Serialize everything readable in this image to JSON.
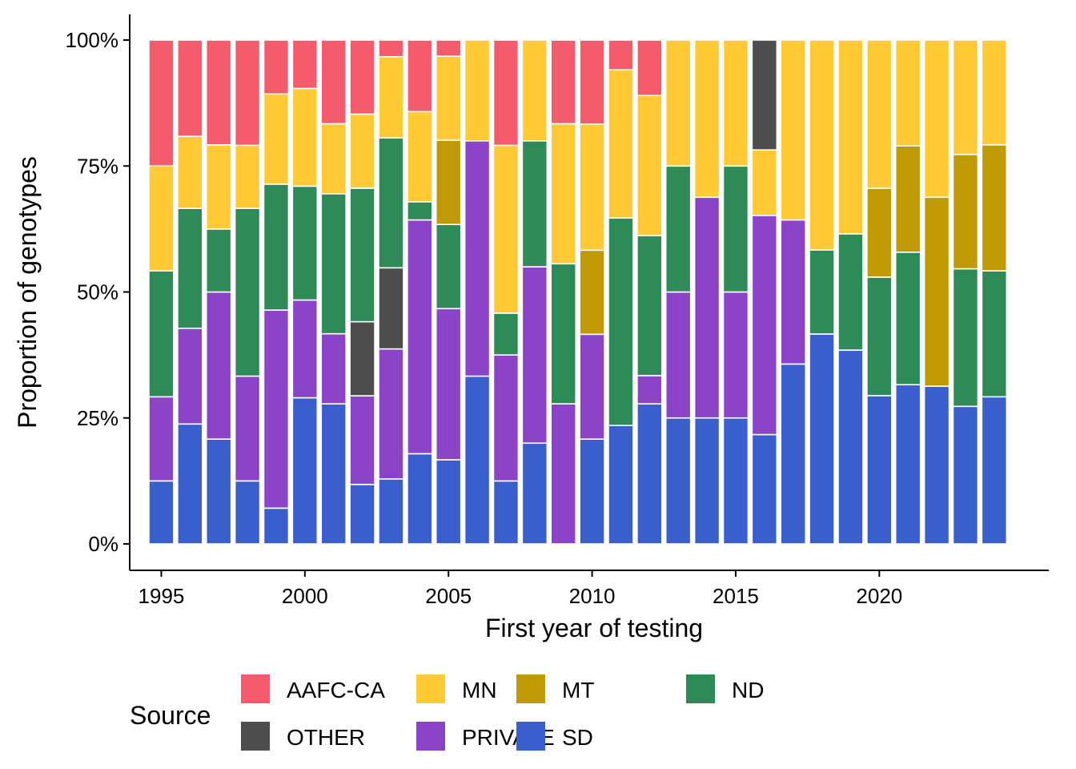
{
  "chart_data": {
    "type": "bar",
    "stacked": true,
    "normalized": true,
    "xlabel": "First year of testing",
    "ylabel": "Proportion of genotypes",
    "ylim": [
      0,
      1
    ],
    "y_ticks": [
      0,
      0.25,
      0.5,
      0.75,
      1.0
    ],
    "y_tick_labels": [
      "0%",
      "25%",
      "50%",
      "75%",
      "100%"
    ],
    "x_ticks": [
      1995,
      2000,
      2005,
      2010,
      2015,
      2020
    ],
    "x_tick_labels": [
      "1995",
      "2000",
      "2005",
      "2010",
      "2015",
      "2020"
    ],
    "xlim": [
      1993.9,
      2025.9
    ],
    "grid": false,
    "legend": {
      "title": "Source",
      "position": "bottom",
      "entries": [
        "AAFC-CA",
        "MN",
        "MT",
        "ND",
        "OTHER",
        "PRIVATE",
        "SD"
      ]
    },
    "colors": {
      "AAFC-CA": "#F45B6D",
      "MN": "#FFCA36",
      "MT": "#BF9A05",
      "ND": "#2E8B57",
      "OTHER": "#4D4D4D",
      "PRIVATE": "#8B44C8",
      "SD": "#3A5FCD"
    },
    "stack_order_bottom_to_top": [
      "SD",
      "PRIVATE",
      "OTHER",
      "ND",
      "MT",
      "MN",
      "AAFC-CA"
    ],
    "years": [
      1995,
      1996,
      1997,
      1998,
      1999,
      2000,
      2001,
      2002,
      2003,
      2004,
      2005,
      2006,
      2007,
      2008,
      2009,
      2010,
      2011,
      2012,
      2013,
      2014,
      2015,
      2016,
      2017,
      2018,
      2019,
      2020,
      2021,
      2022,
      2023,
      2024
    ],
    "series": [
      {
        "name": "SD",
        "values": [
          0.125,
          0.238,
          0.208,
          0.125,
          0.071,
          0.29,
          0.278,
          0.118,
          0.129,
          0.179,
          0.167,
          0.333,
          0.125,
          0.2,
          0.0,
          0.208,
          0.235,
          0.278,
          0.25,
          0.25,
          0.25,
          0.217,
          0.357,
          0.417,
          0.385,
          0.294,
          0.316,
          0.313,
          0.273,
          0.292
        ]
      },
      {
        "name": "PRIVATE",
        "values": [
          0.167,
          0.19,
          0.292,
          0.208,
          0.393,
          0.194,
          0.139,
          0.176,
          0.258,
          0.464,
          0.3,
          0.467,
          0.25,
          0.35,
          0.278,
          0.208,
          0.0,
          0.056,
          0.25,
          0.438,
          0.25,
          0.435,
          0.286,
          0.0,
          0.0,
          0.0,
          0.0,
          0.0,
          0.0,
          0.0
        ]
      },
      {
        "name": "OTHER",
        "values": [
          0,
          0,
          0,
          0,
          0,
          0,
          0,
          0.147,
          0.161,
          0,
          0,
          0,
          0,
          0,
          0,
          0,
          0,
          0,
          0,
          0,
          0,
          0,
          0,
          0,
          0,
          0,
          0,
          0,
          0,
          0
        ]
      },
      {
        "name": "ND",
        "values": [
          0.25,
          0.238,
          0.125,
          0.333,
          0.25,
          0.226,
          0.278,
          0.265,
          0.258,
          0.036,
          0.167,
          0.0,
          0.083,
          0.25,
          0.278,
          0.0,
          0.412,
          0.278,
          0.25,
          0.0,
          0.25,
          0.0,
          0.0,
          0.167,
          0.231,
          0.235,
          0.263,
          0.0,
          0.273,
          0.25
        ]
      },
      {
        "name": "MT",
        "values": [
          0,
          0,
          0,
          0,
          0,
          0,
          0,
          0,
          0,
          0,
          0.167,
          0,
          0,
          0,
          0,
          0.167,
          0,
          0,
          0,
          0,
          0,
          0,
          0,
          0,
          0,
          0.176,
          0.211,
          0.375,
          0.227,
          0.25
        ]
      },
      {
        "name": "MN",
        "values": [
          0.208,
          0.143,
          0.167,
          0.125,
          0.179,
          0.194,
          0.139,
          0.147,
          0.161,
          0.179,
          0.167,
          0.2,
          0.333,
          0.2,
          0.278,
          0.25,
          0.294,
          0.278,
          0.25,
          0.312,
          0.25,
          0.13,
          0.357,
          0.417,
          0.385,
          0.294,
          0.21,
          0.312,
          0.227,
          0.208
        ]
      },
      {
        "name": "AAFC-CA",
        "values": [
          0.25,
          0.191,
          0.208,
          0.209,
          0.107,
          0.096,
          0.166,
          0.147,
          0.033,
          0.142,
          0.032,
          0.0,
          0.209,
          0.0,
          0.166,
          0.167,
          0.059,
          0.11,
          0.0,
          0.0,
          0.0,
          0.0,
          0.0,
          0.0,
          0.0,
          0.0,
          0.0,
          0.0,
          0.0,
          0.0
        ]
      }
    ],
    "extra_segments": [
      {
        "year": 2016,
        "name": "OTHER",
        "value": 0.218,
        "position": "top"
      }
    ]
  }
}
